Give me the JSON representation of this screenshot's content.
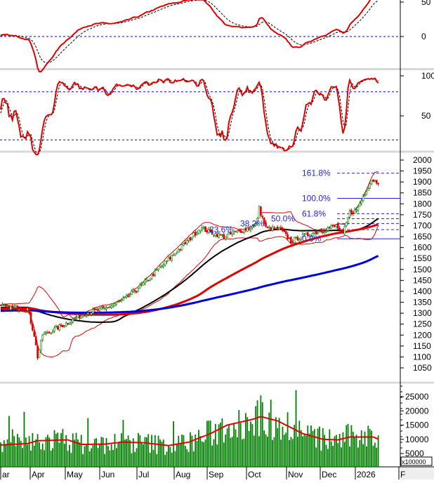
{
  "chart_data": [
    {
      "type": "line",
      "name": "momentum-oscillator",
      "yticks": [
        50,
        0
      ],
      "ylim": [
        -40,
        55
      ],
      "series": [
        {
          "name": "oscillator",
          "color": "#e00000"
        },
        {
          "name": "signal",
          "color": "#000000",
          "style": "dashed"
        }
      ],
      "reference_lines": [
        0
      ]
    },
    {
      "type": "line",
      "name": "stochastic",
      "yticks": [
        100,
        50
      ],
      "ylim": [
        -5,
        100
      ],
      "series": [
        {
          "name": "%K",
          "color": "#e00000"
        },
        {
          "name": "%D",
          "color": "#000000",
          "style": "dashed"
        }
      ],
      "reference_lines": [
        80,
        20
      ]
    },
    {
      "type": "candlestick",
      "name": "price",
      "yticks": [
        2000,
        1950,
        1900,
        1850,
        1800,
        1750,
        1700,
        1650,
        1600,
        1550,
        1500,
        1450,
        1400,
        1350,
        1300,
        1250,
        1200,
        1150,
        1100,
        1050
      ],
      "ylim": [
        1040,
        2030
      ],
      "close_anchors": [
        [
          0,
          1330
        ],
        [
          16,
          1320
        ],
        [
          20,
          1200
        ],
        [
          22,
          1100
        ],
        [
          25,
          1200
        ],
        [
          33,
          1230
        ],
        [
          42,
          1265
        ],
        [
          50,
          1300
        ],
        [
          62,
          1320
        ],
        [
          73,
          1360
        ],
        [
          83,
          1420
        ],
        [
          94,
          1500
        ],
        [
          102,
          1560
        ],
        [
          110,
          1620
        ],
        [
          119,
          1690
        ],
        [
          125,
          1670
        ],
        [
          133,
          1650
        ],
        [
          144,
          1680
        ],
        [
          152,
          1700
        ],
        [
          154,
          1780
        ],
        [
          158,
          1690
        ],
        [
          167,
          1680
        ],
        [
          173,
          1630
        ],
        [
          179,
          1650
        ],
        [
          192,
          1680
        ],
        [
          200,
          1700
        ],
        [
          204,
          1660
        ],
        [
          208,
          1760
        ],
        [
          212,
          1770
        ],
        [
          217,
          1850
        ],
        [
          221,
          1910
        ],
        [
          225,
          1900
        ]
      ],
      "moving_averages": [
        {
          "name": "MA50",
          "color": "#000000"
        },
        {
          "name": "MA100",
          "color": "#e00000"
        },
        {
          "name": "MA200",
          "color": "#0000dd"
        }
      ],
      "bollinger_color": "#e00000",
      "fibonacci": [
        {
          "label": "161.8%",
          "value": 1940
        },
        {
          "label": "100.0%",
          "value": 1825
        },
        {
          "label": "61.8%",
          "value": 1755
        },
        {
          "label": "50.0%",
          "value": 1732
        },
        {
          "label": "38.2%",
          "value": 1710
        },
        {
          "label": "23.6%",
          "value": 1682
        },
        {
          "label": "0.0%",
          "value": 1640
        }
      ],
      "up_color": "#008000",
      "down_color": "#e00000"
    },
    {
      "type": "bar",
      "name": "volume",
      "unit_label": "x100000",
      "yticks": [
        25000,
        20000,
        15000,
        10000,
        5000
      ],
      "ylim": [
        0,
        29000
      ],
      "volume_ma_anchors": [
        [
          0,
          8000
        ],
        [
          16,
          8500
        ],
        [
          22,
          9500
        ],
        [
          40,
          9800
        ],
        [
          48,
          8200
        ],
        [
          62,
          8300
        ],
        [
          72,
          9000
        ],
        [
          85,
          8800
        ],
        [
          100,
          7800
        ],
        [
          112,
          9000
        ],
        [
          125,
          12000
        ],
        [
          135,
          15000
        ],
        [
          150,
          17000
        ],
        [
          155,
          18000
        ],
        [
          165,
          16500
        ],
        [
          180,
          12000
        ],
        [
          192,
          10000
        ],
        [
          201,
          9800
        ],
        [
          208,
          10800
        ],
        [
          222,
          10800
        ],
        [
          235,
          7800
        ],
        [
          255,
          6800
        ],
        [
          280,
          6800
        ],
        [
          290,
          7200
        ],
        [
          300,
          9000
        ]
      ],
      "bar_color": "#008000",
      "ma_color": "#e00000"
    }
  ],
  "x_axis": {
    "labels": [
      "ar",
      "Apr",
      "May",
      "Jun",
      "Jul",
      "Aug",
      "Sep",
      "Oct",
      "Nov",
      "Dec",
      "2026",
      "F"
    ]
  }
}
